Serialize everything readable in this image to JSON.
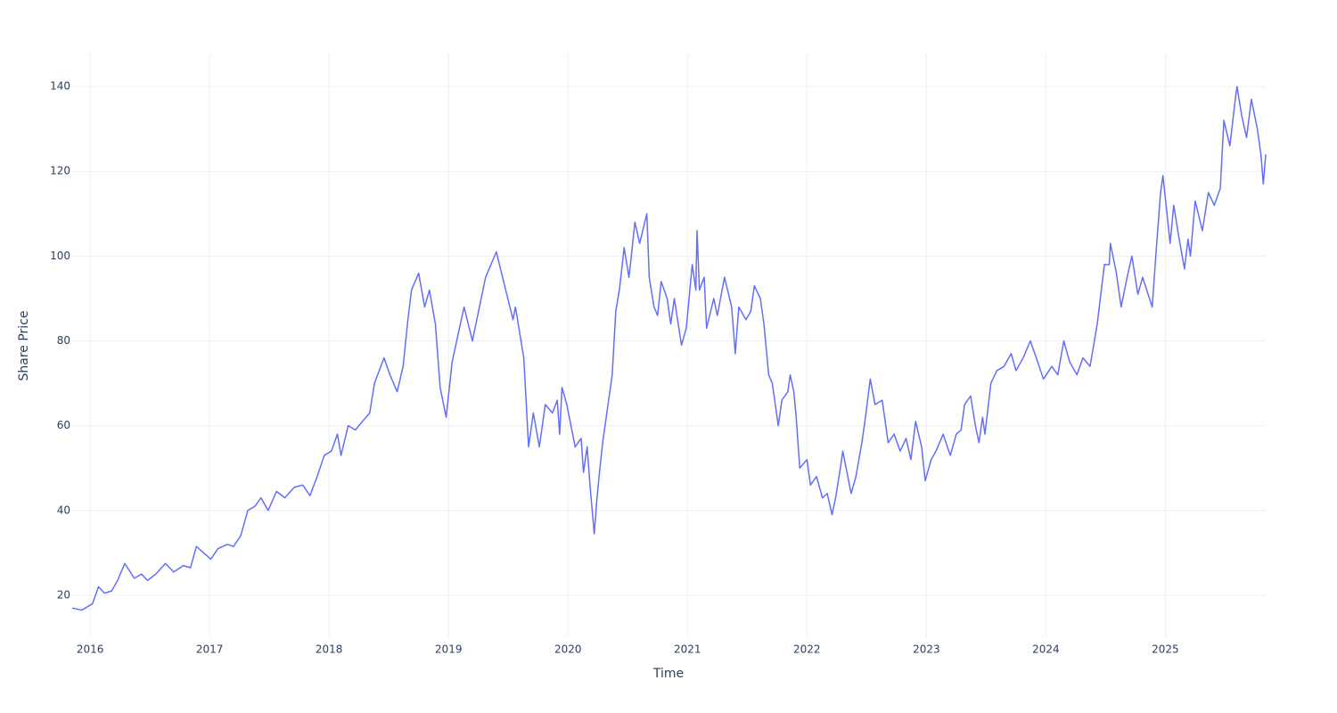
{
  "chart_data": {
    "type": "line",
    "x_label": "Time",
    "y_label": "Share Price",
    "xlim": [
      2015.85,
      2025.84
    ],
    "ylim": [
      10.1,
      147.8
    ],
    "xticks": [
      2016,
      2017,
      2018,
      2019,
      2020,
      2021,
      2022,
      2023,
      2024,
      2025
    ],
    "yticks": [
      20,
      40,
      60,
      80,
      100,
      120,
      140
    ],
    "grid": true,
    "series": [
      {
        "name": "Share Price",
        "color": "#636efa",
        "x": [
          2015.85,
          2015.93,
          2016.02,
          2016.07,
          2016.12,
          2016.18,
          2016.23,
          2016.29,
          2016.37,
          2016.43,
          2016.48,
          2016.55,
          2016.63,
          2016.7,
          2016.78,
          2016.84,
          2016.89,
          2016.95,
          2017.01,
          2017.07,
          2017.15,
          2017.2,
          2017.26,
          2017.32,
          2017.38,
          2017.43,
          2017.49,
          2017.56,
          2017.63,
          2017.71,
          2017.78,
          2017.84,
          2017.9,
          2017.96,
          2018.02,
          2018.07,
          2018.1,
          2018.16,
          2018.22,
          2018.28,
          2018.34,
          2018.38,
          2018.46,
          2018.51,
          2018.57,
          2018.62,
          2018.66,
          2018.69,
          2018.75,
          2018.8,
          2018.84,
          2018.89,
          2018.93,
          2018.98,
          2019.03,
          2019.13,
          2019.2,
          2019.31,
          2019.4,
          2019.54,
          2019.56,
          2019.63,
          2019.67,
          2019.71,
          2019.76,
          2019.81,
          2019.87,
          2019.91,
          2019.93,
          2019.95,
          2019.99,
          2020.06,
          2020.11,
          2020.13,
          2020.16,
          2020.19,
          2020.22,
          2020.24,
          2020.26,
          2020.29,
          2020.34,
          2020.37,
          2020.4,
          2020.43,
          2020.47,
          2020.51,
          2020.53,
          2020.56,
          2020.6,
          2020.66,
          2020.68,
          2020.72,
          2020.75,
          2020.78,
          2020.83,
          2020.86,
          2020.89,
          2020.95,
          2020.99,
          2021.04,
          2021.07,
          2021.08,
          2021.1,
          2021.14,
          2021.16,
          2021.22,
          2021.25,
          2021.31,
          2021.37,
          2021.4,
          2021.43,
          2021.49,
          2021.53,
          2021.56,
          2021.61,
          2021.64,
          2021.68,
          2021.71,
          2021.76,
          2021.79,
          2021.84,
          2021.86,
          2021.89,
          2021.91,
          2021.94,
          2022.0,
          2022.03,
          2022.08,
          2022.13,
          2022.17,
          2022.21,
          2022.24,
          2022.28,
          2022.3,
          2022.37,
          2022.41,
          2022.46,
          2022.49,
          2022.53,
          2022.57,
          2022.63,
          2022.68,
          2022.73,
          2022.78,
          2022.83,
          2022.87,
          2022.91,
          2022.96,
          2022.99,
          2023.04,
          2023.08,
          2023.14,
          2023.2,
          2023.25,
          2023.29,
          2023.32,
          2023.37,
          2023.41,
          2023.44,
          2023.47,
          2023.49,
          2023.54,
          2023.59,
          2023.65,
          2023.71,
          2023.75,
          2023.81,
          2023.87,
          2023.92,
          2023.98,
          2024.05,
          2024.1,
          2024.15,
          2024.2,
          2024.26,
          2024.31,
          2024.37,
          2024.43,
          2024.49,
          2024.53,
          2024.54,
          2024.59,
          2024.63,
          2024.68,
          2024.72,
          2024.77,
          2024.81,
          2024.89,
          2024.92,
          2024.96,
          2024.98,
          2025.04,
          2025.07,
          2025.11,
          2025.16,
          2025.19,
          2025.21,
          2025.25,
          2025.31,
          2025.36,
          2025.41,
          2025.46,
          2025.49,
          2025.54,
          2025.59,
          2025.6,
          2025.64,
          2025.68,
          2025.72,
          2025.77,
          2025.8,
          2025.82,
          2025.84
        ],
        "values": [
          17,
          16.5,
          18,
          22,
          20.5,
          21,
          23.5,
          27.5,
          24,
          25,
          23.5,
          25,
          27.5,
          25.5,
          27,
          26.5,
          31.5,
          30,
          28.5,
          31,
          32,
          31.5,
          34,
          40,
          41,
          43,
          40,
          44.5,
          43,
          45.5,
          46,
          43.5,
          48,
          53,
          54,
          58,
          53,
          60,
          59,
          61,
          63,
          70,
          76,
          72,
          68,
          74,
          85,
          92,
          96,
          88,
          92,
          84,
          69,
          62,
          75,
          88,
          80,
          95,
          101,
          85,
          88,
          76,
          55,
          63,
          55,
          65,
          63,
          66,
          58,
          69,
          65,
          55,
          57,
          49,
          55,
          44,
          34.5,
          42,
          48,
          56,
          66,
          72,
          87,
          92,
          102,
          95,
          100,
          108,
          103,
          110,
          95,
          88,
          86,
          94,
          90,
          84,
          90,
          79,
          83,
          98,
          92,
          106,
          92,
          95,
          83,
          90,
          86,
          95,
          88,
          77,
          88,
          85,
          87,
          93,
          90,
          84,
          72,
          70,
          60,
          66,
          68,
          72,
          68,
          62,
          50,
          52,
          46,
          48,
          43,
          44,
          39,
          43,
          50,
          54,
          44,
          48,
          56,
          62,
          71,
          65,
          66,
          56,
          58,
          54,
          57,
          52,
          61,
          55,
          47,
          52,
          54,
          58,
          53,
          58,
          59,
          65,
          67,
          60,
          56,
          62,
          58,
          70,
          73,
          74,
          77,
          73,
          76,
          80,
          76,
          71,
          74,
          72,
          80,
          75,
          72,
          76,
          74,
          84,
          98,
          98,
          103,
          96,
          88,
          95,
          100,
          91,
          95,
          88,
          100,
          115,
          119,
          103,
          112,
          105,
          97,
          104,
          100,
          113,
          106,
          115,
          112,
          116,
          132,
          126,
          138,
          140,
          133,
          128,
          137,
          130,
          124,
          117,
          124
        ]
      }
    ]
  }
}
